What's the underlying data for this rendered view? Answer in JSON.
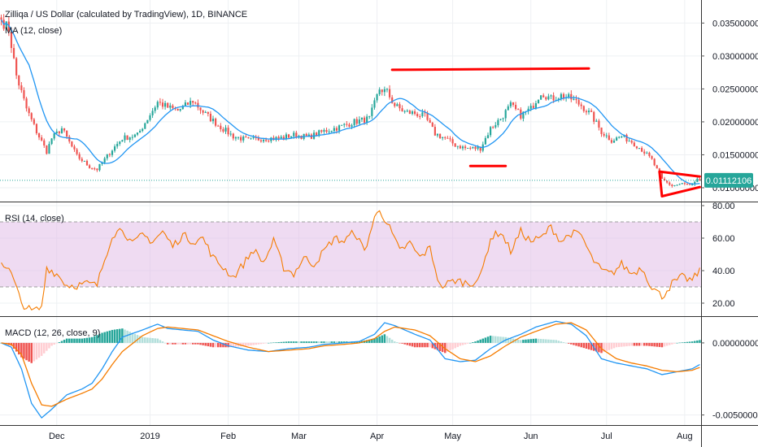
{
  "chart_data": [
    {
      "type": "candlestick",
      "title": "Zilliqa / US Dollar (calculated by TradingView), 1D, BINANCE",
      "indicator_label": "MA (12, close)",
      "last_price_label": "0.01112106",
      "last_price": 0.01112106,
      "ylim": [
        0.0079,
        0.0385
      ],
      "y_ticks": [
        "0.03500000",
        "0.03000000",
        "0.02500000",
        "0.02000000",
        "0.01500000",
        "0.01000000"
      ],
      "y_tick_values": [
        0.035,
        0.03,
        0.025,
        0.02,
        0.015,
        0.01
      ],
      "x_ticks": [
        "Dec",
        "2019",
        "Feb",
        "Mar",
        "Apr",
        "May",
        "Jun",
        "Jul",
        "Aug"
      ],
      "colors": {
        "up": "#26a69a",
        "down": "#ef5350",
        "ma": "#2196f3",
        "price_line": "#26a69a",
        "annotation": "#ff0000"
      },
      "close_path": [
        [
          0,
          0.0355
        ],
        [
          3,
          0.034
        ],
        [
          6,
          0.027
        ],
        [
          10,
          0.022
        ],
        [
          14,
          0.0185
        ],
        [
          18,
          0.0155
        ],
        [
          20,
          0.0175
        ],
        [
          24,
          0.019
        ],
        [
          30,
          0.0148
        ],
        [
          35,
          0.0132
        ],
        [
          38,
          0.0128
        ],
        [
          40,
          0.0138
        ],
        [
          44,
          0.0158
        ],
        [
          48,
          0.0175
        ],
        [
          54,
          0.018
        ],
        [
          58,
          0.0205
        ],
        [
          62,
          0.023
        ],
        [
          66,
          0.0222
        ],
        [
          70,
          0.0217
        ],
        [
          76,
          0.0232
        ],
        [
          80,
          0.0215
        ],
        [
          86,
          0.0195
        ],
        [
          92,
          0.0178
        ],
        [
          98,
          0.0172
        ],
        [
          104,
          0.0175
        ],
        [
          110,
          0.0175
        ],
        [
          116,
          0.018
        ],
        [
          122,
          0.0177
        ],
        [
          128,
          0.0186
        ],
        [
          134,
          0.0192
        ],
        [
          140,
          0.02
        ],
        [
          146,
          0.0205
        ],
        [
          150,
          0.025
        ],
        [
          153,
          0.0245
        ],
        [
          156,
          0.0225
        ],
        [
          160,
          0.0215
        ],
        [
          164,
          0.0213
        ],
        [
          168,
          0.0208
        ],
        [
          172,
          0.0182
        ],
        [
          176,
          0.0175
        ],
        [
          180,
          0.0165
        ],
        [
          184,
          0.016
        ],
        [
          190,
          0.016
        ],
        [
          194,
          0.019
        ],
        [
          198,
          0.0205
        ],
        [
          202,
          0.0225
        ],
        [
          206,
          0.021
        ],
        [
          210,
          0.022
        ],
        [
          214,
          0.0245
        ],
        [
          218,
          0.0235
        ],
        [
          222,
          0.024
        ],
        [
          226,
          0.0235
        ],
        [
          230,
          0.0225
        ],
        [
          234,
          0.021
        ],
        [
          238,
          0.0185
        ],
        [
          242,
          0.0172
        ],
        [
          246,
          0.0178
        ],
        [
          250,
          0.017
        ],
        [
          254,
          0.0158
        ],
        [
          258,
          0.0142
        ],
        [
          262,
          0.0112
        ],
        [
          266,
          0.0103
        ],
        [
          270,
          0.0106
        ],
        [
          274,
          0.0103
        ],
        [
          276,
          0.0111
        ]
      ],
      "annotations": [
        {
          "type": "resistance",
          "from": [
            155,
            0.0279
          ],
          "to": [
            233,
            0.0281
          ]
        },
        {
          "type": "support",
          "from": [
            186,
            0.0133
          ],
          "to": [
            200,
            0.0133
          ]
        },
        {
          "type": "triangle-top",
          "from": [
            261,
            0.01245
          ],
          "to": [
            277,
            0.0117
          ]
        },
        {
          "type": "triangle-bottom",
          "from": [
            262,
            0.0087
          ],
          "to": [
            277,
            0.0101
          ]
        }
      ]
    },
    {
      "type": "line",
      "title": "RSI (14, close)",
      "ylim": [
        12,
        82
      ],
      "y_ticks": [
        "80.00",
        "60.00",
        "40.00",
        "20.00"
      ],
      "y_tick_values": [
        80,
        60,
        40,
        20
      ],
      "band": [
        30,
        70
      ],
      "colors": {
        "line": "#f57c00",
        "band": "#e1bee7"
      },
      "series": [
        {
          "values_path": [
            [
              0,
              46
            ],
            [
              4,
              38
            ],
            [
              8,
              20
            ],
            [
              12,
              15
            ],
            [
              16,
              17
            ],
            [
              18,
              42
            ],
            [
              22,
              38
            ],
            [
              26,
              31
            ],
            [
              30,
              31
            ],
            [
              34,
              32
            ],
            [
              38,
              31
            ],
            [
              40,
              42
            ],
            [
              44,
              62
            ],
            [
              48,
              66
            ],
            [
              52,
              56
            ],
            [
              56,
              62
            ],
            [
              60,
              58
            ],
            [
              64,
              64
            ],
            [
              68,
              55
            ],
            [
              72,
              62
            ],
            [
              76,
              58
            ],
            [
              80,
              60
            ],
            [
              84,
              48
            ],
            [
              88,
              42
            ],
            [
              92,
              36
            ],
            [
              96,
              44
            ],
            [
              100,
              53
            ],
            [
              104,
              45
            ],
            [
              108,
              58
            ],
            [
              112,
              42
            ],
            [
              116,
              38
            ],
            [
              120,
              48
            ],
            [
              124,
              44
            ],
            [
              128,
              52
            ],
            [
              132,
              60
            ],
            [
              136,
              58
            ],
            [
              140,
              64
            ],
            [
              144,
              52
            ],
            [
              148,
              72
            ],
            [
              150,
              78
            ],
            [
              154,
              66
            ],
            [
              158,
              52
            ],
            [
              162,
              57
            ],
            [
              166,
              48
            ],
            [
              170,
              54
            ],
            [
              174,
              30
            ],
            [
              180,
              34
            ],
            [
              186,
              32
            ],
            [
              190,
              36
            ],
            [
              194,
              60
            ],
            [
              198,
              64
            ],
            [
              202,
              52
            ],
            [
              206,
              64
            ],
            [
              210,
              58
            ],
            [
              214,
              60
            ],
            [
              218,
              67
            ],
            [
              222,
              58
            ],
            [
              226,
              63
            ],
            [
              230,
              62
            ],
            [
              234,
              48
            ],
            [
              238,
              40
            ],
            [
              242,
              38
            ],
            [
              246,
              44
            ],
            [
              250,
              38
            ],
            [
              254,
              42
            ],
            [
              258,
              30
            ],
            [
              262,
              24
            ],
            [
              266,
              32
            ],
            [
              270,
              36
            ],
            [
              274,
              34
            ],
            [
              277,
              40
            ]
          ]
        }
      ]
    },
    {
      "type": "line",
      "title": "MACD (12, 26, close, 9)",
      "ylim": [
        -0.0057,
        0.0018
      ],
      "y_ticks": [
        "0.00000000",
        "-0.00500000"
      ],
      "y_tick_values": [
        0,
        -0.005
      ],
      "colors": {
        "macd": "#2196f3",
        "signal": "#f57c00",
        "hist_up": "#26a69a",
        "hist_up_light": "#b2dfdb",
        "hist_down": "#ef5350",
        "hist_down_light": "#ffcdd2"
      },
      "macd_path": [
        [
          0,
          0
        ],
        [
          4,
          -0.0003
        ],
        [
          8,
          -0.0018
        ],
        [
          12,
          -0.0042
        ],
        [
          16,
          -0.0052
        ],
        [
          20,
          -0.0046
        ],
        [
          26,
          -0.0036
        ],
        [
          32,
          -0.0032
        ],
        [
          36,
          -0.0028
        ],
        [
          40,
          -0.0018
        ],
        [
          44,
          -0.0006
        ],
        [
          48,
          0.0004
        ],
        [
          56,
          0.0009
        ],
        [
          62,
          0.0013
        ],
        [
          66,
          0.001
        ],
        [
          72,
          0.0009
        ],
        [
          78,
          0.0008
        ],
        [
          84,
          0.0002
        ],
        [
          90,
          -0.0002
        ],
        [
          98,
          -0.0005
        ],
        [
          106,
          -0.0006
        ],
        [
          114,
          -0.0004
        ],
        [
          122,
          -0.0003
        ],
        [
          128,
          -0.0001
        ],
        [
          136,
          0
        ],
        [
          142,
          0.0001
        ],
        [
          148,
          0.0006
        ],
        [
          152,
          0.0014
        ],
        [
          156,
          0.0012
        ],
        [
          164,
          0.0006
        ],
        [
          170,
          0.0002
        ],
        [
          176,
          -0.0011
        ],
        [
          182,
          -0.0013
        ],
        [
          188,
          -0.0012
        ],
        [
          194,
          -0.0004
        ],
        [
          200,
          0.0002
        ],
        [
          206,
          0.0006
        ],
        [
          212,
          0.0011
        ],
        [
          220,
          0.0015
        ],
        [
          226,
          0.0013
        ],
        [
          232,
          0.0005
        ],
        [
          238,
          -0.0011
        ],
        [
          244,
          -0.0014
        ],
        [
          250,
          -0.0016
        ],
        [
          256,
          -0.0018
        ],
        [
          262,
          -0.0022
        ],
        [
          268,
          -0.002
        ],
        [
          274,
          -0.0018
        ],
        [
          277,
          -0.0015
        ]
      ],
      "signal_path": [
        [
          0,
          0
        ],
        [
          4,
          -0.0001
        ],
        [
          8,
          -0.0008
        ],
        [
          12,
          -0.0028
        ],
        [
          16,
          -0.0043
        ],
        [
          20,
          -0.0044
        ],
        [
          26,
          -0.0039
        ],
        [
          32,
          -0.0035
        ],
        [
          36,
          -0.0032
        ],
        [
          40,
          -0.0025
        ],
        [
          44,
          -0.0015
        ],
        [
          48,
          -0.0006
        ],
        [
          56,
          0.0005
        ],
        [
          62,
          0.001
        ],
        [
          66,
          0.0011
        ],
        [
          72,
          0.001
        ],
        [
          78,
          0.0009
        ],
        [
          84,
          0.0005
        ],
        [
          90,
          0.0001
        ],
        [
          98,
          -0.0003
        ],
        [
          106,
          -0.0006
        ],
        [
          114,
          -0.0005
        ],
        [
          122,
          -0.0004
        ],
        [
          128,
          -0.0002
        ],
        [
          136,
          -0.0001
        ],
        [
          142,
          0
        ],
        [
          148,
          0.0003
        ],
        [
          152,
          0.0008
        ],
        [
          156,
          0.0011
        ],
        [
          164,
          0.0009
        ],
        [
          170,
          0.0005
        ],
        [
          176,
          -0.0004
        ],
        [
          182,
          -0.0011
        ],
        [
          188,
          -0.0013
        ],
        [
          194,
          -0.0009
        ],
        [
          200,
          -0.0002
        ],
        [
          206,
          0.0004
        ],
        [
          212,
          0.0008
        ],
        [
          220,
          0.0013
        ],
        [
          226,
          0.0014
        ],
        [
          232,
          0.0009
        ],
        [
          238,
          -0.0004
        ],
        [
          244,
          -0.0011
        ],
        [
          250,
          -0.0014
        ],
        [
          256,
          -0.0016
        ],
        [
          262,
          -0.0019
        ],
        [
          268,
          -0.002
        ],
        [
          274,
          -0.0019
        ],
        [
          277,
          -0.0017
        ]
      ]
    }
  ]
}
